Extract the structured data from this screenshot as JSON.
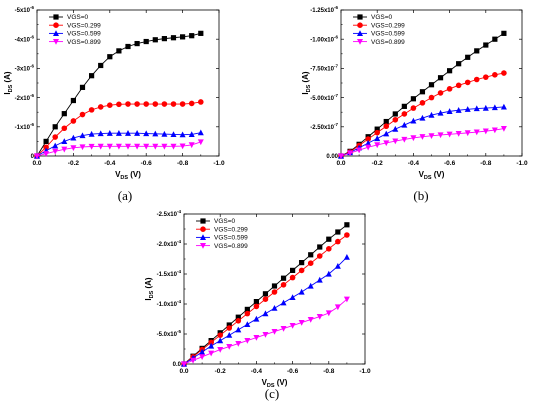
{
  "chart_data": [
    {
      "type": "line",
      "caption": "(a)",
      "xlabel": {
        "main": "V",
        "sub": "DS",
        "unit": " (V)"
      },
      "ylabel": {
        "main": "I",
        "sub": "DS",
        "unit": " (A)"
      },
      "xlim": [
        0.0,
        -1.0
      ],
      "ylim": [
        0,
        -5e-06
      ],
      "xticks": [
        {
          "v": 0.0,
          "label": "0.0"
        },
        {
          "v": -0.2,
          "label": "-0.2"
        },
        {
          "v": -0.4,
          "label": "-0.4"
        },
        {
          "v": -0.6,
          "label": "-0.6"
        },
        {
          "v": -0.8,
          "label": "-0.8"
        },
        {
          "v": -1.0,
          "label": "-1.0"
        }
      ],
      "yticks": [
        {
          "v": 0,
          "m": "0",
          "e": ""
        },
        {
          "v": -1e-06,
          "m": "-1x10",
          "e": "-6"
        },
        {
          "v": -2e-06,
          "m": "-2x10",
          "e": "-6"
        },
        {
          "v": -3e-06,
          "m": "-3x10",
          "e": "-6"
        },
        {
          "v": -4e-06,
          "m": "-4x10",
          "e": "-6"
        },
        {
          "v": -5e-06,
          "m": "-5x10",
          "e": "-6"
        }
      ],
      "legend_position": "top-left",
      "x": [
        0,
        -0.05,
        -0.1,
        -0.15,
        -0.2,
        -0.25,
        -0.3,
        -0.35,
        -0.4,
        -0.45,
        -0.5,
        -0.55,
        -0.6,
        -0.65,
        -0.7,
        -0.75,
        -0.8,
        -0.85,
        -0.9
      ],
      "series": [
        {
          "name": "VGS=0",
          "marker": "square",
          "color": "#000000",
          "values": [
            0,
            -5e-07,
            -1e-06,
            -1.45e-06,
            -1.9e-06,
            -2.35e-06,
            -2.75e-06,
            -3.1e-06,
            -3.4e-06,
            -3.6e-06,
            -3.75e-06,
            -3.85e-06,
            -3.92e-06,
            -3.98e-06,
            -4.02e-06,
            -4.05e-06,
            -4.08e-06,
            -4.12e-06,
            -4.2e-06
          ]
        },
        {
          "name": "VGS=0.299",
          "marker": "circle",
          "color": "#ff0000",
          "values": [
            0,
            -3e-07,
            -6.5e-07,
            -9.5e-07,
            -1.2e-06,
            -1.42e-06,
            -1.58e-06,
            -1.68e-06,
            -1.74e-06,
            -1.77e-06,
            -1.78e-06,
            -1.78e-06,
            -1.78e-06,
            -1.78e-06,
            -1.78e-06,
            -1.78e-06,
            -1.78e-06,
            -1.8e-06,
            -1.85e-06
          ]
        },
        {
          "name": "VGS=0.599",
          "marker": "triangle-up",
          "color": "#0000ff",
          "values": [
            0,
            -1.8e-07,
            -3.5e-07,
            -5e-07,
            -6.2e-07,
            -7e-07,
            -7.5e-07,
            -7.7e-07,
            -7.8e-07,
            -7.8e-07,
            -7.8e-07,
            -7.8e-07,
            -7.7e-07,
            -7.6e-07,
            -7.5e-07,
            -7.4e-07,
            -7.3e-07,
            -7.4e-07,
            -8e-07
          ]
        },
        {
          "name": "VGS=0.899",
          "marker": "triangle-down",
          "color": "#ff00ff",
          "values": [
            0,
            -8e-08,
            -1.6e-07,
            -2.3e-07,
            -2.8e-07,
            -3.1e-07,
            -3.25e-07,
            -3.3e-07,
            -3.3e-07,
            -3.3e-07,
            -3.3e-07,
            -3.3e-07,
            -3.3e-07,
            -3.3e-07,
            -3.3e-07,
            -3.3e-07,
            -3.4e-07,
            -3.8e-07,
            -4.8e-07
          ]
        }
      ]
    },
    {
      "type": "line",
      "caption": "(b)",
      "xlabel": {
        "main": "V",
        "sub": "DS",
        "unit": " (V)"
      },
      "ylabel": {
        "main": "I",
        "sub": "DS",
        "unit": " (A)"
      },
      "xlim": [
        0.0,
        -1.0
      ],
      "ylim": [
        0,
        -1.25e-06
      ],
      "xticks": [
        {
          "v": 0.0,
          "label": "0.0"
        },
        {
          "v": -0.2,
          "label": "-0.2"
        },
        {
          "v": -0.4,
          "label": "-0.4"
        },
        {
          "v": -0.6,
          "label": "-0.6"
        },
        {
          "v": -0.8,
          "label": "-0.8"
        },
        {
          "v": -1.0,
          "label": "-1.0"
        }
      ],
      "yticks": [
        {
          "v": 0,
          "m": "0.00",
          "e": ""
        },
        {
          "v": -2.5e-07,
          "m": "-2.50x10",
          "e": "-7"
        },
        {
          "v": -5e-07,
          "m": "-5.00x10",
          "e": "-7"
        },
        {
          "v": -7.5e-07,
          "m": "-7.50x10",
          "e": "-7"
        },
        {
          "v": -1e-06,
          "m": "-1.00x10",
          "e": "-6"
        },
        {
          "v": -1.25e-06,
          "m": "-1.25x10",
          "e": "-6"
        }
      ],
      "legend_position": "top-left",
      "x": [
        0,
        -0.05,
        -0.1,
        -0.15,
        -0.2,
        -0.25,
        -0.3,
        -0.35,
        -0.4,
        -0.45,
        -0.5,
        -0.55,
        -0.6,
        -0.65,
        -0.7,
        -0.75,
        -0.8,
        -0.85,
        -0.9
      ],
      "series": [
        {
          "name": "VGS=0",
          "marker": "square",
          "color": "#000000",
          "values": [
            0,
            -4e-08,
            -1e-07,
            -1.65e-07,
            -2.3e-07,
            -2.95e-07,
            -3.6e-07,
            -4.25e-07,
            -4.9e-07,
            -5.5e-07,
            -6.1e-07,
            -6.7e-07,
            -7.3e-07,
            -7.9e-07,
            -8.45e-07,
            -9e-07,
            -9.5e-07,
            -1e-06,
            -1.05e-06
          ]
        },
        {
          "name": "VGS=0.299",
          "marker": "circle",
          "color": "#ff0000",
          "values": [
            0,
            -3.5e-08,
            -9e-08,
            -1.45e-07,
            -2e-07,
            -2.55e-07,
            -3.1e-07,
            -3.6e-07,
            -4.1e-07,
            -4.55e-07,
            -5e-07,
            -5.4e-07,
            -5.75e-07,
            -6.05e-07,
            -6.3e-07,
            -6.55e-07,
            -6.75e-07,
            -6.95e-07,
            -7.1e-07
          ]
        },
        {
          "name": "VGS=0.599",
          "marker": "triangle-up",
          "color": "#0000ff",
          "values": [
            0,
            -3e-08,
            -7e-08,
            -1.1e-07,
            -1.5e-07,
            -1.9e-07,
            -2.3e-07,
            -2.65e-07,
            -3e-07,
            -3.25e-07,
            -3.5e-07,
            -3.68e-07,
            -3.82e-07,
            -3.92e-07,
            -4e-07,
            -4.06e-07,
            -4.1e-07,
            -4.15e-07,
            -4.2e-07
          ]
        },
        {
          "name": "VGS=0.899",
          "marker": "triangle-down",
          "color": "#ff00ff",
          "values": [
            0,
            -2.5e-08,
            -5e-08,
            -7.5e-08,
            -9.5e-08,
            -1.12e-07,
            -1.28e-07,
            -1.42e-07,
            -1.55e-07,
            -1.65e-07,
            -1.73e-07,
            -1.8e-07,
            -1.86e-07,
            -1.92e-07,
            -1.98e-07,
            -2.05e-07,
            -2.13e-07,
            -2.22e-07,
            -2.35e-07
          ]
        }
      ]
    },
    {
      "type": "line",
      "caption": "(c)",
      "xlabel": {
        "main": "V",
        "sub": "DS",
        "unit": " (V)"
      },
      "ylabel": {
        "main": "I",
        "sub": "DS",
        "unit": " (A)"
      },
      "xlim": [
        0.0,
        -1.0
      ],
      "ylim": [
        0,
        -0.00025
      ],
      "xticks": [
        {
          "v": 0.0,
          "label": "0.0"
        },
        {
          "v": -0.2,
          "label": "-0.2"
        },
        {
          "v": -0.4,
          "label": "-0.4"
        },
        {
          "v": -0.6,
          "label": "-0.6"
        },
        {
          "v": -0.8,
          "label": "-0.8"
        },
        {
          "v": -1.0,
          "label": "-1.0"
        }
      ],
      "yticks": [
        {
          "v": 0,
          "m": "0.0",
          "e": ""
        },
        {
          "v": -5e-05,
          "m": "-5.0x10",
          "e": "-5"
        },
        {
          "v": -0.0001,
          "m": "-1.0x10",
          "e": "-4"
        },
        {
          "v": -0.00015,
          "m": "-1.5x10",
          "e": "-4"
        },
        {
          "v": -0.0002,
          "m": "-2.0x10",
          "e": "-4"
        },
        {
          "v": -0.00025,
          "m": "-2.5x10",
          "e": "-4"
        }
      ],
      "legend_position": "top-left",
      "x": [
        0,
        -0.05,
        -0.1,
        -0.15,
        -0.2,
        -0.25,
        -0.3,
        -0.35,
        -0.4,
        -0.45,
        -0.5,
        -0.55,
        -0.6,
        -0.65,
        -0.7,
        -0.75,
        -0.8,
        -0.85,
        -0.9
      ],
      "series": [
        {
          "name": "VGS=0",
          "marker": "square",
          "color": "#000000",
          "values": [
            0,
            -1.3e-05,
            -2.6e-05,
            -3.9e-05,
            -5.2e-05,
            -6.5e-05,
            -7.8e-05,
            -9.1e-05,
            -0.000104,
            -0.000117,
            -0.00013,
            -0.000143,
            -0.000156,
            -0.000169,
            -0.000182,
            -0.000195,
            -0.000208,
            -0.00022,
            -0.000232
          ]
        },
        {
          "name": "VGS=0.299",
          "marker": "circle",
          "color": "#ff0000",
          "values": [
            0,
            -1.2e-05,
            -2.4e-05,
            -3.6e-05,
            -4.8e-05,
            -6e-05,
            -7.2e-05,
            -8.4e-05,
            -9.6e-05,
            -0.000108,
            -0.00012,
            -0.000132,
            -0.000144,
            -0.000156,
            -0.000168,
            -0.00018,
            -0.000192,
            -0.000204,
            -0.000215
          ]
        },
        {
          "name": "VGS=0.599",
          "marker": "triangle-up",
          "color": "#0000ff",
          "values": [
            0,
            -1e-05,
            -2e-05,
            -3e-05,
            -3.9e-05,
            -4.8e-05,
            -5.7e-05,
            -6.6e-05,
            -7.5e-05,
            -8.4e-05,
            -9.3e-05,
            -0.000102,
            -0.000111,
            -0.00012,
            -0.00013,
            -0.00014,
            -0.00015,
            -0.000163,
            -0.000178
          ]
        },
        {
          "name": "VGS=0.899",
          "marker": "triangle-down",
          "color": "#ff00ff",
          "values": [
            0,
            -6e-06,
            -1.2e-05,
            -1.8e-05,
            -2.4e-05,
            -2.9e-05,
            -3.4e-05,
            -3.9e-05,
            -4.4e-05,
            -4.9e-05,
            -5.4e-05,
            -5.9e-05,
            -6.4e-05,
            -6.9e-05,
            -7.4e-05,
            -7.9e-05,
            -8.5e-05,
            -9.5e-05,
            -0.000108
          ]
        }
      ]
    }
  ]
}
